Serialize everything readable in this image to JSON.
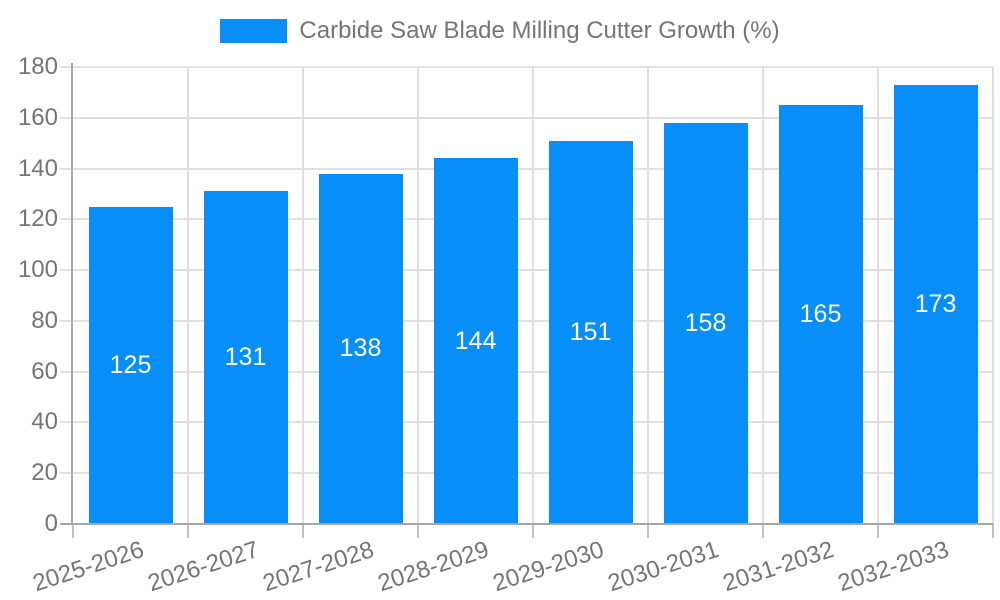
{
  "legend": {
    "label": "Carbide Saw Blade Milling Cutter Growth (%)"
  },
  "colors": {
    "bar": "#088ef8",
    "grid": "#e0e0e0",
    "axis": "#a6a6a6",
    "x_tick": "#c2c2c2",
    "text": "#757575",
    "value_label": "#ffffff",
    "background": "#ffffff"
  },
  "chart_data": {
    "type": "bar",
    "title": "Carbide Saw Blade Milling Cutter Growth (%)",
    "categories": [
      "2025-2026",
      "2026-2027",
      "2027-2028",
      "2028-2029",
      "2029-2030",
      "2030-2031",
      "2031-2032",
      "2032-2033"
    ],
    "values": [
      125,
      131,
      138,
      144,
      151,
      158,
      165,
      173
    ],
    "xlabel": "",
    "ylabel": "",
    "ylim": [
      0,
      180
    ],
    "yticks": [
      0,
      20,
      40,
      60,
      80,
      100,
      120,
      140,
      160,
      180
    ],
    "grid": true,
    "legend_position": "top-center",
    "value_labels": "inside-center",
    "x_label_rotation_deg": -18
  }
}
